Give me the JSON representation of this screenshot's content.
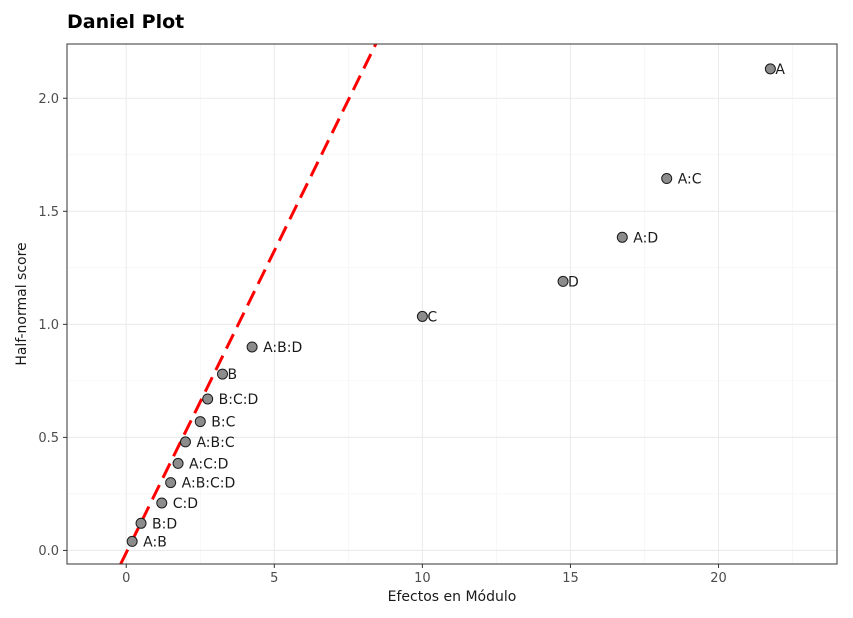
{
  "chart_data": {
    "type": "scatter",
    "title": "Daniel Plot",
    "xlabel": "Efectos en Módulo",
    "ylabel": "Half-normal score",
    "xlim": [
      -2,
      24
    ],
    "ylim": [
      -0.06,
      2.24
    ],
    "x_ticks": [
      0,
      5,
      10,
      15,
      20
    ],
    "y_ticks": [
      0.0,
      0.5,
      1.0,
      1.5,
      2.0
    ],
    "x_tick_labels": [
      "0",
      "5",
      "10",
      "15",
      "20"
    ],
    "y_tick_labels": [
      "0.0",
      "0.5",
      "1.0",
      "1.5",
      "2.0"
    ],
    "grid": true,
    "reference_line": {
      "style": "dashed",
      "color": "#ff0000",
      "slope": 0.267,
      "intercept": -0.01
    },
    "point_color": "#8c8c8c",
    "points": [
      {
        "label": "A:B",
        "x": 0.2,
        "y": 0.04
      },
      {
        "label": "B:D",
        "x": 0.5,
        "y": 0.12
      },
      {
        "label": "C:D",
        "x": 1.2,
        "y": 0.21
      },
      {
        "label": "A:B:C:D",
        "x": 1.5,
        "y": 0.3
      },
      {
        "label": "A:C:D",
        "x": 1.75,
        "y": 0.385
      },
      {
        "label": "A:B:C",
        "x": 2.0,
        "y": 0.48
      },
      {
        "label": "B:C",
        "x": 2.5,
        "y": 0.57
      },
      {
        "label": "B:C:D",
        "x": 2.75,
        "y": 0.67
      },
      {
        "label": "B",
        "x": 3.25,
        "y": 0.78
      },
      {
        "label": "A:B:D",
        "x": 4.25,
        "y": 0.9
      },
      {
        "label": "C",
        "x": 10.0,
        "y": 1.035
      },
      {
        "label": "D",
        "x": 14.75,
        "y": 1.19
      },
      {
        "label": "A:D",
        "x": 16.75,
        "y": 1.385
      },
      {
        "label": "A:C",
        "x": 18.25,
        "y": 1.645
      },
      {
        "label": "A",
        "x": 21.75,
        "y": 2.13
      }
    ]
  }
}
